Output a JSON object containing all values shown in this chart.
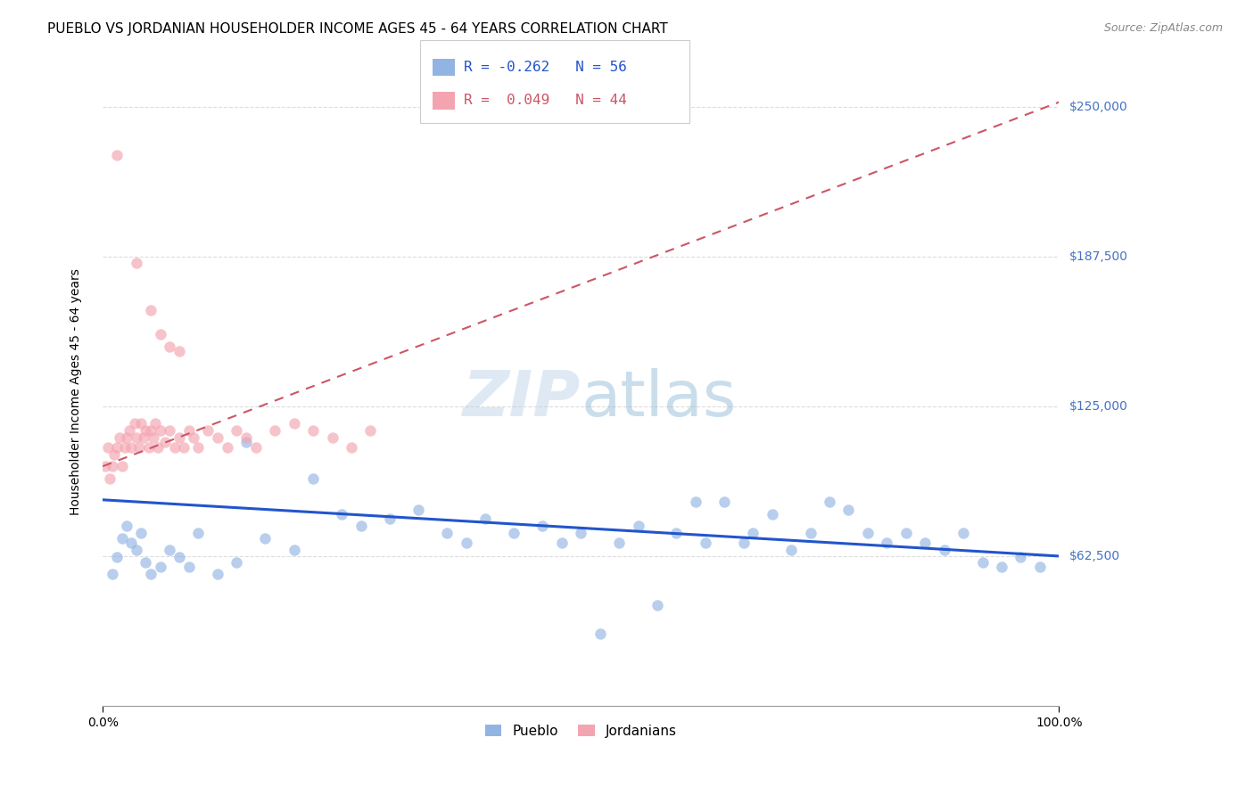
{
  "title": "PUEBLO VS JORDANIAN HOUSEHOLDER INCOME AGES 45 - 64 YEARS CORRELATION CHART",
  "source": "Source: ZipAtlas.com",
  "ylabel": "Householder Income Ages 45 - 64 years",
  "y_tick_labels": [
    "$62,500",
    "$125,000",
    "$187,500",
    "$250,000"
  ],
  "y_tick_values": [
    62500,
    125000,
    187500,
    250000
  ],
  "watermark": "ZIPatlas",
  "pueblo_color": "#92b4e3",
  "jordanian_color": "#f4a4b0",
  "pueblo_line_color": "#2255cc",
  "jordanian_line_color": "#cc5566",
  "pueblo_legend_color": "#92b4e3",
  "jordanian_legend_color": "#f4a4b0",
  "pueblo_x": [
    1.0,
    1.5,
    2.0,
    2.5,
    3.0,
    3.5,
    4.0,
    4.5,
    5.0,
    6.0,
    7.0,
    8.0,
    9.0,
    10.0,
    12.0,
    14.0,
    15.0,
    17.0,
    20.0,
    22.0,
    25.0,
    27.0,
    30.0,
    33.0,
    36.0,
    38.0,
    40.0,
    43.0,
    46.0,
    48.0,
    50.0,
    52.0,
    54.0,
    56.0,
    58.0,
    60.0,
    62.0,
    63.0,
    65.0,
    67.0,
    68.0,
    70.0,
    72.0,
    74.0,
    76.0,
    78.0,
    80.0,
    82.0,
    84.0,
    86.0,
    88.0,
    90.0,
    92.0,
    94.0,
    96.0,
    98.0
  ],
  "pueblo_y": [
    55000,
    62000,
    70000,
    75000,
    68000,
    65000,
    72000,
    60000,
    55000,
    58000,
    65000,
    62000,
    58000,
    72000,
    55000,
    60000,
    110000,
    70000,
    65000,
    95000,
    80000,
    75000,
    78000,
    82000,
    72000,
    68000,
    78000,
    72000,
    75000,
    68000,
    72000,
    30000,
    68000,
    75000,
    42000,
    72000,
    85000,
    68000,
    85000,
    68000,
    72000,
    80000,
    65000,
    72000,
    85000,
    82000,
    72000,
    68000,
    72000,
    68000,
    65000,
    72000,
    60000,
    58000,
    62000,
    58000
  ],
  "jordanian_x": [
    0.3,
    0.5,
    0.7,
    1.0,
    1.2,
    1.5,
    1.8,
    2.0,
    2.3,
    2.5,
    2.8,
    3.0,
    3.3,
    3.5,
    3.8,
    4.0,
    4.3,
    4.5,
    4.8,
    5.0,
    5.3,
    5.5,
    5.8,
    6.0,
    6.5,
    7.0,
    7.5,
    8.0,
    8.5,
    9.0,
    9.5,
    10.0,
    11.0,
    12.0,
    13.0,
    14.0,
    15.0,
    16.0,
    18.0,
    20.0,
    22.0,
    24.0,
    26.0,
    28.0
  ],
  "jordanian_y": [
    100000,
    108000,
    95000,
    100000,
    105000,
    108000,
    112000,
    100000,
    108000,
    112000,
    115000,
    108000,
    118000,
    112000,
    108000,
    118000,
    112000,
    115000,
    108000,
    115000,
    112000,
    118000,
    108000,
    115000,
    110000,
    115000,
    108000,
    112000,
    108000,
    115000,
    112000,
    108000,
    115000,
    112000,
    108000,
    115000,
    112000,
    108000,
    115000,
    118000,
    115000,
    112000,
    108000,
    115000
  ],
  "jordanian_outlier_x": [
    1.5,
    3.5,
    5.0,
    6.0,
    7.0,
    8.0
  ],
  "jordanian_outlier_y": [
    230000,
    185000,
    165000,
    155000,
    150000,
    148000
  ],
  "xlim": [
    0,
    100
  ],
  "ylim": [
    0,
    262500
  ],
  "background_color": "#ffffff",
  "grid_color": "#dddddd",
  "title_fontsize": 11,
  "axis_label_fontsize": 10,
  "tick_label_fontsize": 10,
  "source_fontsize": 9,
  "marker_size": 9,
  "marker_alpha": 0.65
}
